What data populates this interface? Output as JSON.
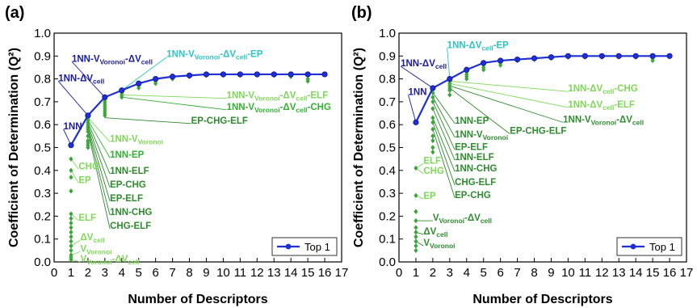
{
  "colors": {
    "top1": "#1f2fd6",
    "dark_green": "#2e8b2e",
    "mid_green": "#32b232",
    "light_green": "#7ed957",
    "cyan": "#2ec4c4",
    "scatter": "#3aa63a"
  },
  "chart_data": [
    {
      "panel_label": "(a)",
      "type": "scatter",
      "xlabel": "Number of Descriptors",
      "ylabel": "Coefficient of Determination (Q²)",
      "xlim": [
        0,
        17
      ],
      "ylim": [
        0,
        1.0
      ],
      "x_ticks": [
        0,
        1,
        2,
        3,
        4,
        5,
        6,
        7,
        8,
        9,
        10,
        11,
        12,
        13,
        14,
        15,
        16,
        17
      ],
      "y_ticks": [
        0.0,
        0.1,
        0.2,
        0.3,
        0.4,
        0.5,
        0.6,
        0.7,
        0.8,
        0.9,
        1.0
      ],
      "legend": {
        "label": "Top 1",
        "position": "bottom-right"
      },
      "top1": {
        "name": "Top 1",
        "x": [
          1,
          2,
          3,
          4,
          5,
          6,
          7,
          8,
          9,
          10,
          11,
          12,
          13,
          14,
          15,
          16
        ],
        "y": [
          0.51,
          0.64,
          0.72,
          0.75,
          0.78,
          0.8,
          0.81,
          0.815,
          0.82,
          0.82,
          0.82,
          0.82,
          0.82,
          0.82,
          0.82,
          0.82
        ]
      },
      "scatter": [
        {
          "x": 1,
          "y": [
            0.51,
            0.45,
            0.4,
            0.37,
            0.31,
            0.21,
            0.19,
            0.17,
            0.15,
            0.13,
            0.11,
            0.09,
            0.07,
            0.05,
            0.03,
            0.02,
            0.01
          ]
        },
        {
          "x": 2,
          "y": [
            0.64,
            0.63,
            0.62,
            0.61,
            0.6,
            0.59,
            0.58,
            0.57,
            0.55,
            0.53,
            0.52,
            0.51,
            0.5
          ]
        },
        {
          "x": 3,
          "y": [
            0.72,
            0.71,
            0.7,
            0.69,
            0.68,
            0.67,
            0.66,
            0.65,
            0.64
          ]
        },
        {
          "x": 4,
          "y": [
            0.75,
            0.74,
            0.73,
            0.72
          ]
        },
        {
          "x": 5,
          "y": [
            0.78,
            0.77,
            0.76
          ]
        },
        {
          "x": 6,
          "y": [
            0.8,
            0.79,
            0.78
          ]
        },
        {
          "x": 7,
          "y": [
            0.81,
            0.8
          ]
        },
        {
          "x": 8,
          "y": [
            0.815,
            0.81
          ]
        },
        {
          "x": 9,
          "y": [
            0.82,
            0.815
          ]
        },
        {
          "x": 10,
          "y": [
            0.82,
            0.815
          ]
        },
        {
          "x": 11,
          "y": [
            0.82,
            0.815
          ]
        },
        {
          "x": 12,
          "y": [
            0.82,
            0.815
          ]
        },
        {
          "x": 13,
          "y": [
            0.82,
            0.815
          ]
        },
        {
          "x": 14,
          "y": [
            0.82,
            0.81
          ]
        },
        {
          "x": 15,
          "y": [
            0.82,
            0.8,
            0.79
          ]
        },
        {
          "x": 16,
          "y": [
            0.82
          ]
        }
      ],
      "annotations": [
        {
          "parts": [
            [
              "1NN",
              ""
            ]
          ],
          "color": "dark_navy",
          "tx": 0.55,
          "ty": 0.58,
          "px": 1,
          "py": 0.51
        },
        {
          "parts": [
            [
              "1NN-ΔV",
              ""
            ],
            [
              "cell",
              "sub"
            ]
          ],
          "color": "dark_navy",
          "tx": 0.25,
          "ty": 0.79,
          "px": 2,
          "py": 0.64
        },
        {
          "parts": [
            [
              "1NN-V",
              ""
            ],
            [
              "Voronoi",
              "sub"
            ],
            [
              "-ΔV",
              ""
            ],
            [
              "cell",
              "sub"
            ]
          ],
          "color": "dark_navy",
          "tx": 1.05,
          "ty": 0.875,
          "px": 3,
          "py": 0.72
        },
        {
          "parts": [
            [
              "1NN-V",
              ""
            ],
            [
              "Voronoi",
              "sub"
            ],
            [
              "-ΔV",
              ""
            ],
            [
              "cell",
              "sub"
            ],
            [
              "-EP",
              ""
            ]
          ],
          "color": "cyan",
          "tx": 6.65,
          "ty": 0.895,
          "px": 4,
          "py": 0.75
        },
        {
          "parts": [
            [
              "1NN-V",
              ""
            ],
            [
              "Voronoi",
              "sub"
            ],
            [
              "-ΔV",
              ""
            ],
            [
              "cell",
              "sub"
            ],
            [
              "-ELF",
              ""
            ]
          ],
          "color": "light_green",
          "tx": 10.2,
          "ty": 0.715,
          "px": 4,
          "py": 0.73
        },
        {
          "parts": [
            [
              "1NN-V",
              ""
            ],
            [
              "Voronoi",
              "sub"
            ],
            [
              "-ΔV",
              ""
            ],
            [
              "cell",
              "sub"
            ],
            [
              "-CHG",
              ""
            ]
          ],
          "color": "mid_green",
          "tx": 10.2,
          "ty": 0.665,
          "px": 4,
          "py": 0.72
        },
        {
          "parts": [
            [
              "EP-CHG-ELF",
              ""
            ]
          ],
          "color": "dark_green",
          "tx": 8.1,
          "ty": 0.605,
          "px": 3,
          "py": 0.63
        },
        {
          "parts": [
            [
              "1NN-V",
              ""
            ],
            [
              "Voronoi",
              "sub"
            ]
          ],
          "color": "light_green",
          "tx": 3.3,
          "ty": 0.525,
          "px": 2,
          "py": 0.63
        },
        {
          "parts": [
            [
              "1NN-EP",
              ""
            ]
          ],
          "color": "mid_green",
          "tx": 3.3,
          "ty": 0.455,
          "px": 2,
          "py": 0.62
        },
        {
          "parts": [
            [
              "1NN-ELF",
              ""
            ]
          ],
          "color": "dark_green",
          "tx": 3.3,
          "ty": 0.385,
          "px": 2,
          "py": 0.61
        },
        {
          "parts": [
            [
              "EP-CHG",
              ""
            ]
          ],
          "color": "dark_green",
          "tx": 3.3,
          "ty": 0.325,
          "px": 2,
          "py": 0.6
        },
        {
          "parts": [
            [
              "EP-ELF",
              ""
            ]
          ],
          "color": "dark_green",
          "tx": 3.3,
          "ty": 0.265,
          "px": 2,
          "py": 0.59
        },
        {
          "parts": [
            [
              "1NN-CHG",
              ""
            ]
          ],
          "color": "dark_green",
          "tx": 3.3,
          "ty": 0.205,
          "px": 2,
          "py": 0.58
        },
        {
          "parts": [
            [
              "CHG-ELF",
              ""
            ]
          ],
          "color": "dark_green",
          "tx": 3.3,
          "ty": 0.145,
          "px": 2,
          "py": 0.57
        },
        {
          "parts": [
            [
              "CHG",
              ""
            ]
          ],
          "color": "light_green",
          "tx": 1.45,
          "ty": 0.405,
          "px": 1,
          "py": 0.45
        },
        {
          "parts": [
            [
              "EP",
              ""
            ]
          ],
          "color": "light_green",
          "tx": 1.45,
          "ty": 0.345,
          "px": 1,
          "py": 0.4
        },
        {
          "parts": [
            [
              "ELF",
              ""
            ]
          ],
          "color": "light_green",
          "tx": 1.45,
          "ty": 0.18,
          "px": 1,
          "py": 0.21
        },
        {
          "parts": [
            [
              "ΔV",
              ""
            ],
            [
              "cell",
              "sub"
            ]
          ],
          "color": "light_green",
          "tx": 1.55,
          "ty": 0.095,
          "px": 1,
          "py": 0.07
        },
        {
          "parts": [
            [
              "V",
              ""
            ],
            [
              "Voronoi",
              "sub"
            ]
          ],
          "color": "light_green",
          "tx": 1.55,
          "ty": 0.045,
          "px": 1,
          "py": 0.03
        },
        {
          "parts": [
            [
              "V",
              ""
            ],
            [
              "Voronoi",
              "sub"
            ],
            [
              "-ΔV",
              ""
            ],
            [
              "cell",
              "sub"
            ]
          ],
          "color": "light_green",
          "tx": 1.55,
          "ty": 0.0,
          "px": 1,
          "py": 0.01
        }
      ]
    },
    {
      "panel_label": "(b)",
      "type": "scatter",
      "xlabel": "Number of Descriptors",
      "ylabel": "Coefficient of Determination (Q²)",
      "xlim": [
        0,
        17
      ],
      "ylim": [
        0,
        1.0
      ],
      "x_ticks": [
        0,
        1,
        2,
        3,
        4,
        5,
        6,
        7,
        8,
        9,
        10,
        11,
        12,
        13,
        14,
        15,
        16,
        17
      ],
      "y_ticks": [
        0.0,
        0.1,
        0.2,
        0.3,
        0.4,
        0.5,
        0.6,
        0.7,
        0.8,
        0.9,
        1.0
      ],
      "legend": {
        "label": "Top 1",
        "position": "bottom-right"
      },
      "top1": {
        "name": "Top 1",
        "x": [
          1,
          2,
          3,
          4,
          5,
          6,
          7,
          8,
          9,
          10,
          11,
          12,
          13,
          14,
          15,
          16
        ],
        "y": [
          0.61,
          0.76,
          0.8,
          0.84,
          0.87,
          0.88,
          0.885,
          0.89,
          0.895,
          0.9,
          0.9,
          0.9,
          0.9,
          0.9,
          0.9,
          0.9
        ]
      },
      "scatter": [
        {
          "x": 1,
          "y": [
            0.61,
            0.41,
            0.29,
            0.22,
            0.18,
            0.15,
            0.13,
            0.11,
            0.09,
            0.07,
            0.05
          ]
        },
        {
          "x": 2,
          "y": [
            0.76,
            0.74,
            0.72,
            0.7,
            0.67,
            0.63,
            0.61,
            0.58,
            0.55,
            0.53,
            0.5,
            0.48
          ]
        },
        {
          "x": 3,
          "y": [
            0.8,
            0.79,
            0.78,
            0.77,
            0.76,
            0.75,
            0.73
          ]
        },
        {
          "x": 4,
          "y": [
            0.84,
            0.83,
            0.82,
            0.81,
            0.8
          ]
        },
        {
          "x": 5,
          "y": [
            0.87,
            0.86,
            0.85,
            0.84
          ]
        },
        {
          "x": 6,
          "y": [
            0.88,
            0.87,
            0.86
          ]
        },
        {
          "x": 7,
          "y": [
            0.885,
            0.88
          ]
        },
        {
          "x": 8,
          "y": [
            0.89,
            0.885
          ]
        },
        {
          "x": 9,
          "y": [
            0.895,
            0.89
          ]
        },
        {
          "x": 10,
          "y": [
            0.9,
            0.895
          ]
        },
        {
          "x": 11,
          "y": [
            0.9,
            0.895
          ]
        },
        {
          "x": 12,
          "y": [
            0.9,
            0.895
          ]
        },
        {
          "x": 13,
          "y": [
            0.9,
            0.895
          ]
        },
        {
          "x": 14,
          "y": [
            0.9,
            0.895
          ]
        },
        {
          "x": 15,
          "y": [
            0.9,
            0.89,
            0.88
          ]
        },
        {
          "x": 16,
          "y": [
            0.9
          ]
        }
      ],
      "annotations": [
        {
          "parts": [
            [
              "1NN",
              ""
            ]
          ],
          "color": "dark_navy",
          "tx": 0.55,
          "ty": 0.73,
          "px": 1,
          "py": 0.61
        },
        {
          "parts": [
            [
              "1NN-ΔV",
              ""
            ],
            [
              "cell",
              "sub"
            ]
          ],
          "color": "dark_navy",
          "tx": 0.1,
          "ty": 0.855,
          "px": 2,
          "py": 0.76
        },
        {
          "parts": [
            [
              "1NN-ΔV",
              ""
            ],
            [
              "cell",
              "sub"
            ],
            [
              "-EP",
              ""
            ]
          ],
          "color": "cyan",
          "tx": 2.85,
          "ty": 0.935,
          "px": 3,
          "py": 0.8
        },
        {
          "parts": [
            [
              "1NN-ΔV",
              ""
            ],
            [
              "cell",
              "sub"
            ],
            [
              "-CHG",
              ""
            ]
          ],
          "color": "light_green",
          "tx": 10.0,
          "ty": 0.745,
          "px": 3,
          "py": 0.79
        },
        {
          "parts": [
            [
              "1NN-ΔV",
              ""
            ],
            [
              "cell",
              "sub"
            ],
            [
              "-ELF",
              ""
            ]
          ],
          "color": "light_green",
          "tx": 10.0,
          "ty": 0.675,
          "px": 3,
          "py": 0.78
        },
        {
          "parts": [
            [
              "1NN-V",
              ""
            ],
            [
              "Voronoi",
              "sub"
            ],
            [
              "-ΔV",
              ""
            ],
            [
              "cell",
              "sub"
            ]
          ],
          "color": "dark_green",
          "tx": 9.7,
          "ty": 0.61,
          "px": 3,
          "py": 0.77
        },
        {
          "parts": [
            [
              "EP-CHG-ELF",
              ""
            ]
          ],
          "color": "dark_green",
          "tx": 6.55,
          "ty": 0.56,
          "px": 3,
          "py": 0.76
        },
        {
          "parts": [
            [
              "1NN-EP",
              ""
            ]
          ],
          "color": "dark_green",
          "tx": 3.3,
          "ty": 0.605,
          "px": 2,
          "py": 0.74
        },
        {
          "parts": [
            [
              "1NN-V",
              ""
            ],
            [
              "Voronoi",
              "sub"
            ]
          ],
          "color": "dark_green",
          "tx": 3.3,
          "ty": 0.545,
          "px": 2,
          "py": 0.72
        },
        {
          "parts": [
            [
              "EP-ELF",
              ""
            ]
          ],
          "color": "dark_green",
          "tx": 3.3,
          "ty": 0.49,
          "px": 2,
          "py": 0.7
        },
        {
          "parts": [
            [
              "1NN-ELF",
              ""
            ]
          ],
          "color": "dark_green",
          "tx": 3.3,
          "ty": 0.445,
          "px": 2,
          "py": 0.67
        },
        {
          "parts": [
            [
              "1NN-CHG",
              ""
            ]
          ],
          "color": "dark_green",
          "tx": 3.3,
          "ty": 0.395,
          "px": 2,
          "py": 0.63
        },
        {
          "parts": [
            [
              "CHG-ELF",
              ""
            ]
          ],
          "color": "dark_green",
          "tx": 3.3,
          "ty": 0.335,
          "px": 2,
          "py": 0.61
        },
        {
          "parts": [
            [
              "EP-CHG",
              ""
            ]
          ],
          "color": "dark_green",
          "tx": 3.3,
          "ty": 0.28,
          "px": 2,
          "py": 0.58
        },
        {
          "parts": [
            [
              "ELF",
              ""
            ]
          ],
          "color": "light_green",
          "tx": 1.45,
          "ty": 0.43,
          "px": 1,
          "py": 0.41
        },
        {
          "parts": [
            [
              "CHG",
              ""
            ]
          ],
          "color": "light_green",
          "tx": 1.45,
          "ty": 0.385,
          "px": 1,
          "py": 0.41
        },
        {
          "parts": [
            [
              "EP",
              ""
            ]
          ],
          "color": "light_green",
          "tx": 1.45,
          "ty": 0.275,
          "px": 1,
          "py": 0.29
        },
        {
          "parts": [
            [
              "V",
              ""
            ],
            [
              "Voronoi",
              "sub"
            ],
            [
              "-ΔV",
              ""
            ],
            [
              "cell",
              "sub"
            ]
          ],
          "color": "dark_green",
          "tx": 2.0,
          "ty": 0.18,
          "px": 1,
          "py": 0.18
        },
        {
          "parts": [
            [
              "ΔV",
              ""
            ],
            [
              "cell",
              "sub"
            ]
          ],
          "color": "dark_green",
          "tx": 1.45,
          "ty": 0.12,
          "px": 1,
          "py": 0.13
        },
        {
          "parts": [
            [
              "V",
              ""
            ],
            [
              "Voronoi",
              "sub"
            ]
          ],
          "color": "dark_green",
          "tx": 1.45,
          "ty": 0.07,
          "px": 1,
          "py": 0.09
        }
      ]
    }
  ]
}
